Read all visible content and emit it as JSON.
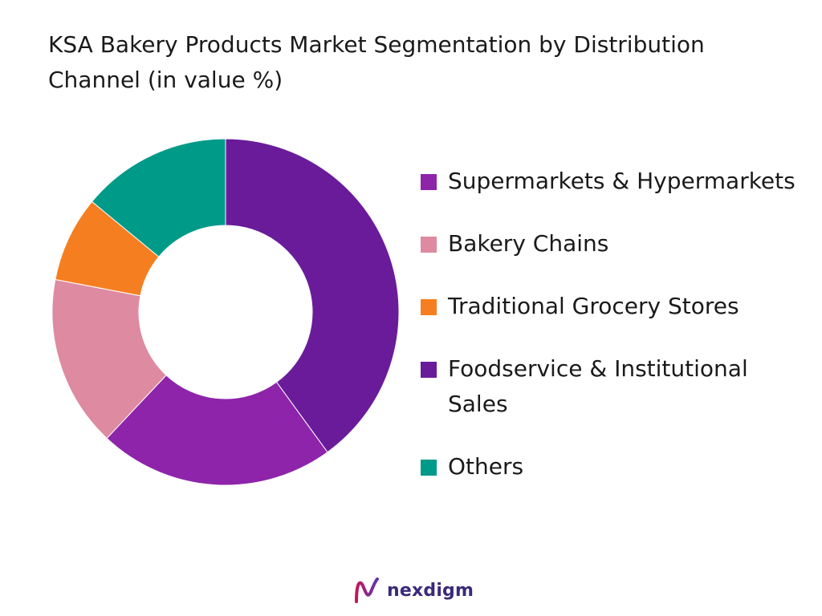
{
  "chart_data": {
    "type": "pie",
    "variant": "donut",
    "title": "KSA Bakery Products Market Segmentation by Distribution Channel (in value %)",
    "categories": [
      "Supermarkets & Hypermarkets",
      "Bakery Chains",
      "Traditional Grocery Stores",
      "Foodservice & Institutional Sales",
      "Others"
    ],
    "values": [
      40,
      22,
      16,
      8,
      14
    ],
    "colors": [
      "#6a1b9a",
      "#8e24aa",
      "#de8aa0",
      "#f57f20",
      "#009a88"
    ],
    "legend_colors": [
      "#8e24aa",
      "#de8aa0",
      "#f57f20",
      "#6a1b9a",
      "#009a88"
    ],
    "legend_position": "right"
  },
  "brand": {
    "name": "nexdigm",
    "logo_icon": "nexdigm-logo-icon"
  }
}
